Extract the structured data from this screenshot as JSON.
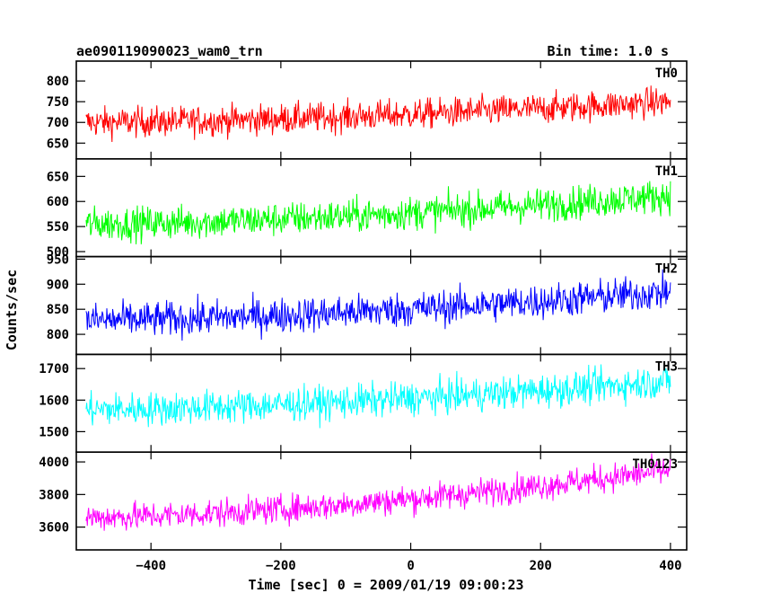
{
  "chart_data": {
    "type": "line",
    "title_left": "ae090119090023_wam0_trn",
    "title_right": "Bin time: 1.0 s",
    "xlabel": "Time [sec] 0 = 2009/01/19 09:00:23",
    "ylabel": "Counts/sec",
    "xlim": [
      -515,
      425
    ],
    "x_range": [
      -500,
      400
    ],
    "x_ticks": [
      -400,
      -200,
      0,
      200,
      400
    ],
    "x_tick_labels": [
      "−400",
      "−200",
      "0",
      "200",
      "400"
    ],
    "grid": false,
    "panels": [
      {
        "name": "TH0",
        "color": "#ff0000",
        "ylim": [
          612,
          848
        ],
        "y_ticks": [
          650,
          700,
          750,
          800
        ],
        "y_tick_labels": [
          "650",
          "700",
          "750",
          "800"
        ],
        "mean_start": 700,
        "mean_end": 750,
        "noise": 26
      },
      {
        "name": "TH1",
        "color": "#00ff00",
        "ylim": [
          490,
          685
        ],
        "y_ticks": [
          500,
          550,
          600,
          650
        ],
        "y_tick_labels": [
          "500",
          "550",
          "600",
          "650"
        ],
        "mean_start": 555,
        "mean_end": 612,
        "noise": 24
      },
      {
        "name": "TH2",
        "color": "#0000ff",
        "ylim": [
          760,
          955
        ],
        "y_ticks": [
          800,
          850,
          900,
          950
        ],
        "y_tick_labels": [
          "800",
          "850",
          "900",
          "950"
        ],
        "mean_start": 828,
        "mean_end": 885,
        "noise": 25
      },
      {
        "name": "TH3",
        "color": "#00ffff",
        "ylim": [
          1435,
          1745
        ],
        "y_ticks": [
          1500,
          1600,
          1700
        ],
        "y_tick_labels": [
          "1500",
          "1600",
          "1700"
        ],
        "mean_start": 1570,
        "mean_end": 1660,
        "noise": 38
      },
      {
        "name": "TH0123",
        "color": "#ff00ff",
        "ylim": [
          3460,
          4060
        ],
        "y_ticks": [
          3600,
          3800,
          4000
        ],
        "y_tick_labels": [
          "3600",
          "3800",
          "4000"
        ],
        "mean_start": 3660,
        "mean_end": 3950,
        "noise": 62
      }
    ]
  }
}
